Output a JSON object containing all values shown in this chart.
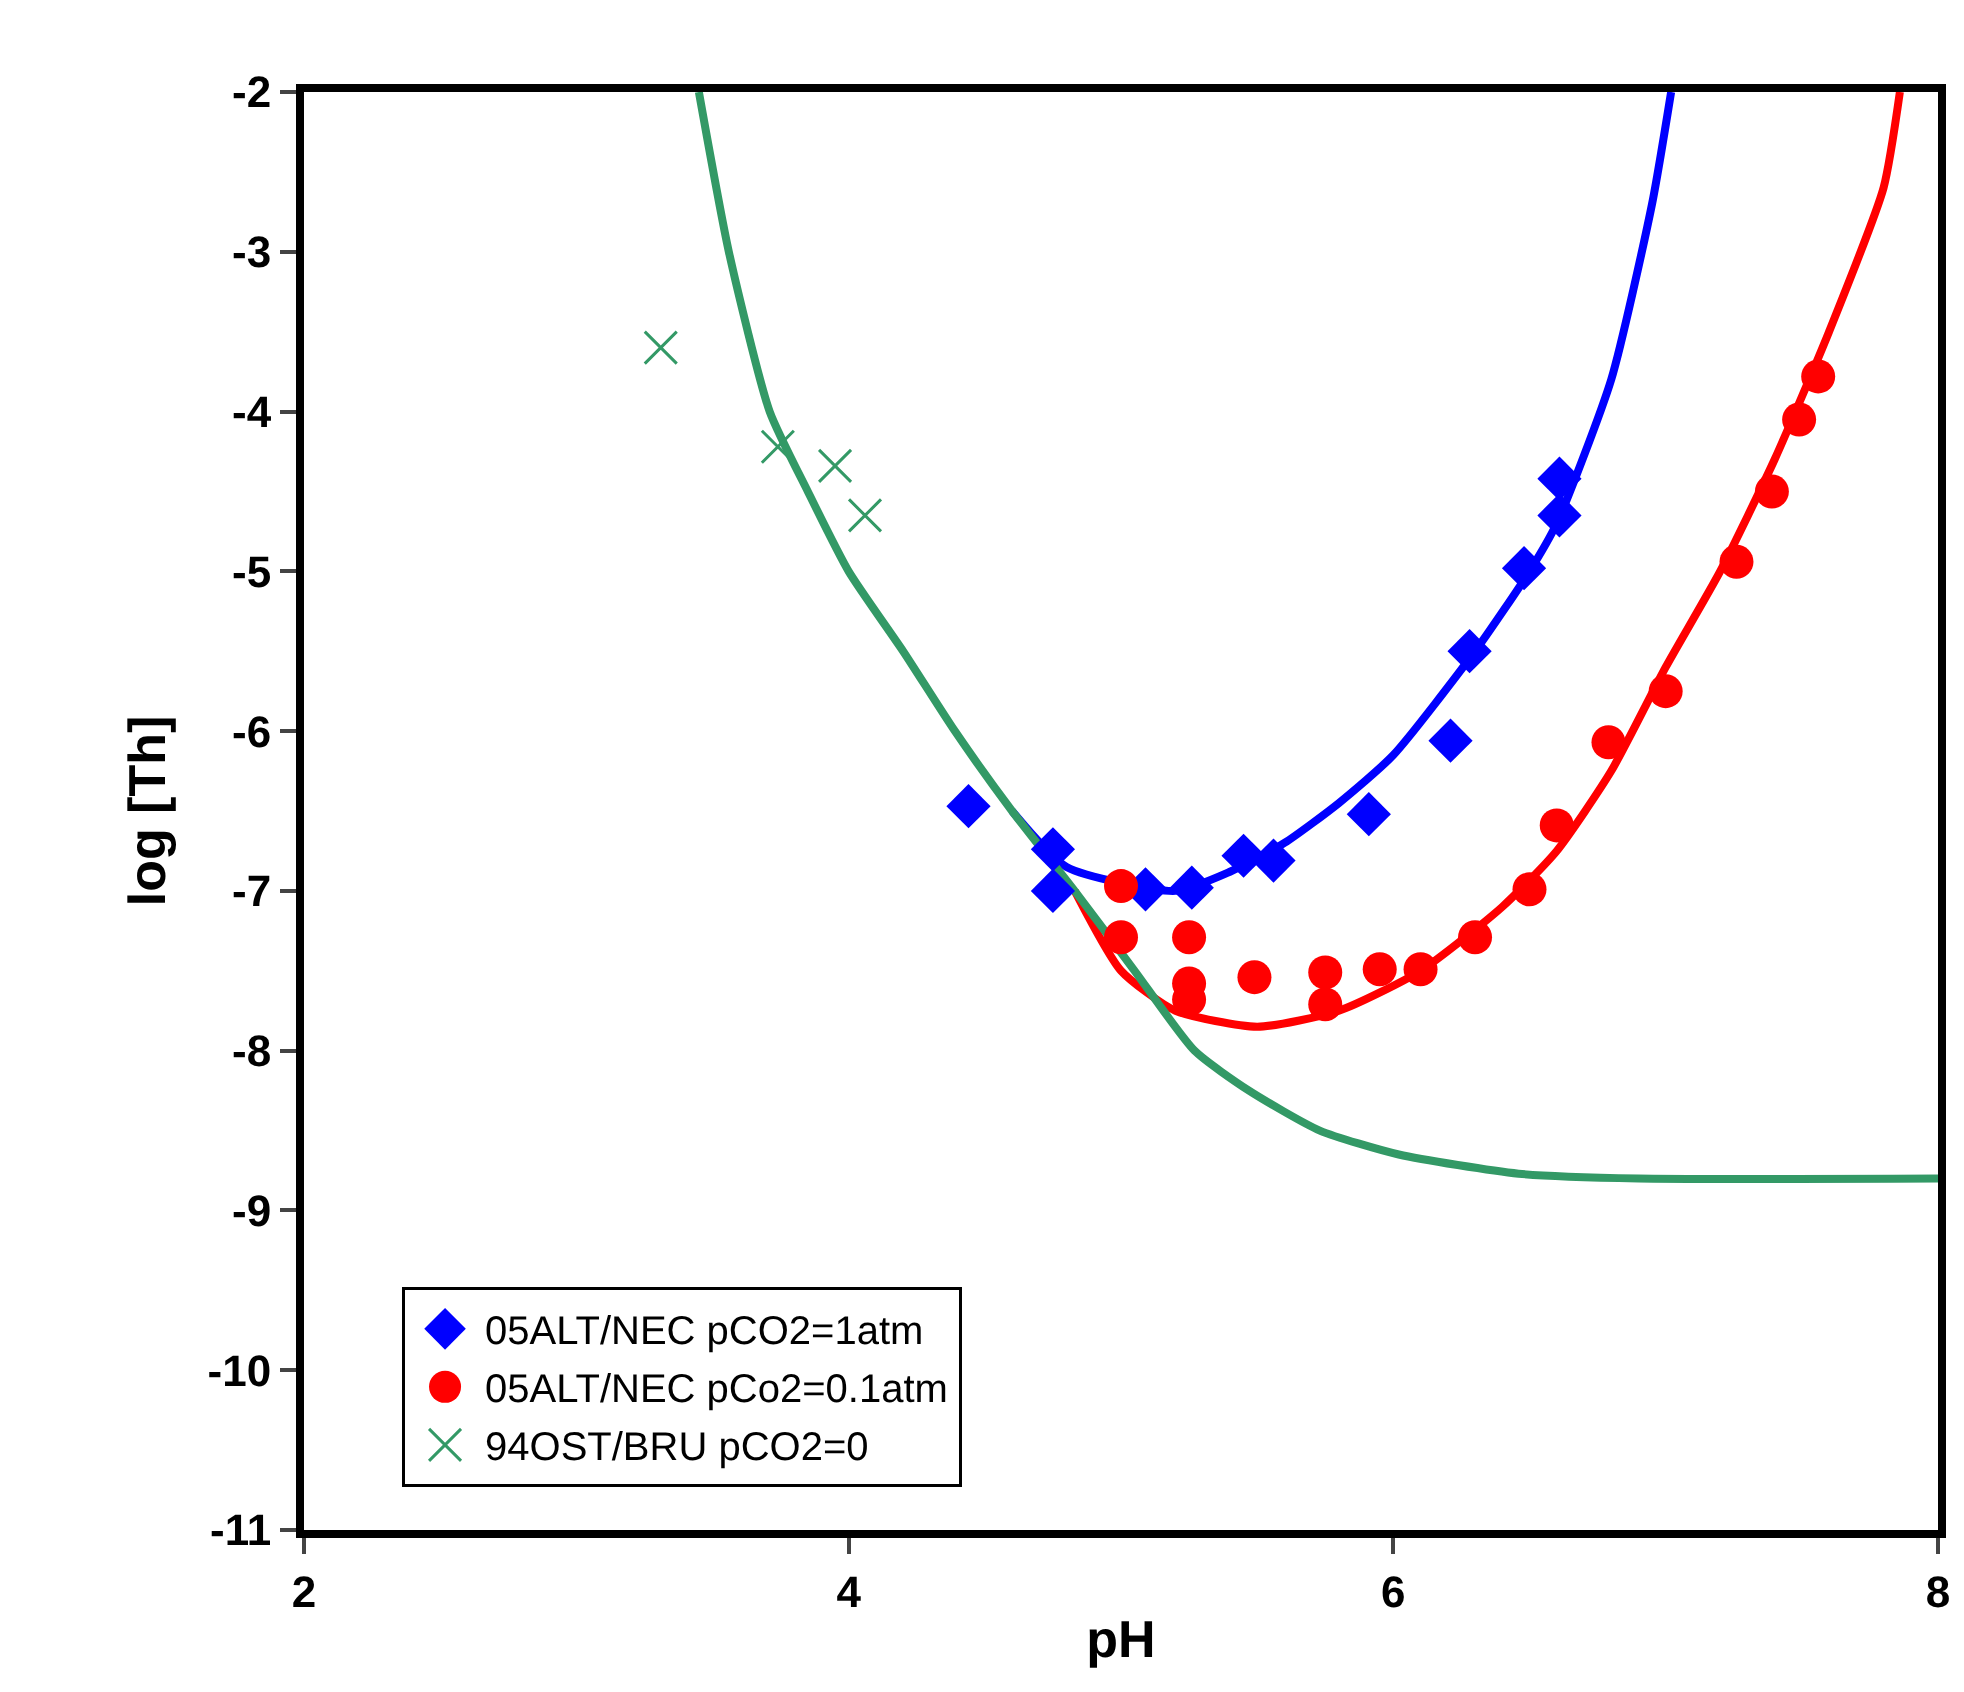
{
  "chart_data": {
    "type": "scatter",
    "xlabel": "pH",
    "ylabel": "log [Th]",
    "xlim": [
      2,
      8
    ],
    "xticks": [
      2,
      4,
      6,
      8
    ],
    "ylim": [
      -11,
      -2
    ],
    "yticks": [
      -11,
      -10,
      -9,
      -8,
      -7,
      -6,
      -5,
      -4,
      -3,
      -2
    ],
    "grid": false,
    "legend": "bottom left",
    "series": [
      {
        "name": "05ALT/NEC pCO2=1atm",
        "marker": "diamond",
        "color": "#0000ff",
        "x": [
          4.44,
          4.75,
          4.75,
          5.09,
          5.26,
          5.45,
          5.56,
          5.91,
          6.21,
          6.28,
          6.48,
          6.61,
          6.61
        ],
        "values": [
          -6.47,
          -6.74,
          -7.0,
          -6.99,
          -6.98,
          -6.78,
          -6.81,
          -6.52,
          -6.06,
          -5.5,
          -4.98,
          -4.65,
          -4.42
        ]
      },
      {
        "name": "05ALT/NEC pCo2=0.1atm",
        "marker": "circle",
        "color": "#ff0000",
        "x": [
          5.0,
          5.0,
          5.25,
          5.25,
          5.25,
          5.49,
          5.75,
          5.75,
          5.95,
          6.1,
          6.3,
          6.5,
          6.6,
          6.79,
          7.0,
          7.26,
          7.39,
          7.49,
          7.56
        ],
        "values": [
          -6.97,
          -7.29,
          -7.29,
          -7.58,
          -7.68,
          -7.54,
          -7.51,
          -7.71,
          -7.49,
          -7.49,
          -7.29,
          -6.99,
          -6.59,
          -6.07,
          -5.75,
          -4.94,
          -4.5,
          -4.05,
          -3.78
        ]
      },
      {
        "name": "94OST/BRU pCO2=0",
        "marker": "cross",
        "color": "#339966",
        "x": [
          3.31,
          3.74,
          3.95,
          4.06
        ],
        "values": [
          -3.6,
          -4.22,
          -4.34,
          -4.65
        ]
      },
      {
        "type": "line",
        "color": "#0000ff",
        "x": [
          4.6,
          4.8,
          5.2,
          5.4,
          5.6,
          5.8,
          6.0,
          6.3,
          6.5,
          6.6,
          6.8,
          6.95,
          7.02
        ],
        "values": [
          -6.5,
          -6.85,
          -7.0,
          -6.88,
          -6.7,
          -6.45,
          -6.15,
          -5.5,
          -5.0,
          -4.7,
          -3.8,
          -2.7,
          -2
        ]
      },
      {
        "type": "line",
        "color": "#ff0000",
        "x": [
          4.83,
          5.0,
          5.2,
          5.5,
          5.8,
          6.1,
          6.4,
          6.6,
          6.8,
          7.0,
          7.2,
          7.4,
          7.6,
          7.8,
          7.86
        ],
        "values": [
          -7.0,
          -7.5,
          -7.75,
          -7.85,
          -7.75,
          -7.5,
          -7.1,
          -6.75,
          -6.25,
          -5.6,
          -5.0,
          -4.3,
          -3.5,
          -2.6,
          -2
        ]
      },
      {
        "type": "line",
        "color": "#339966",
        "x": [
          3.45,
          3.56,
          3.71,
          3.85,
          4.0,
          4.2,
          4.39,
          4.6,
          4.83,
          5.05,
          5.27,
          5.47,
          5.73,
          6.02,
          6.46,
          6.9,
          8
        ],
        "values": [
          -2,
          -3,
          -4,
          -4.5,
          -5,
          -5.5,
          -6,
          -6.5,
          -7,
          -7.5,
          -8,
          -8.25,
          -8.5,
          -8.65,
          -8.77,
          -8.8,
          -8.8
        ]
      }
    ]
  }
}
